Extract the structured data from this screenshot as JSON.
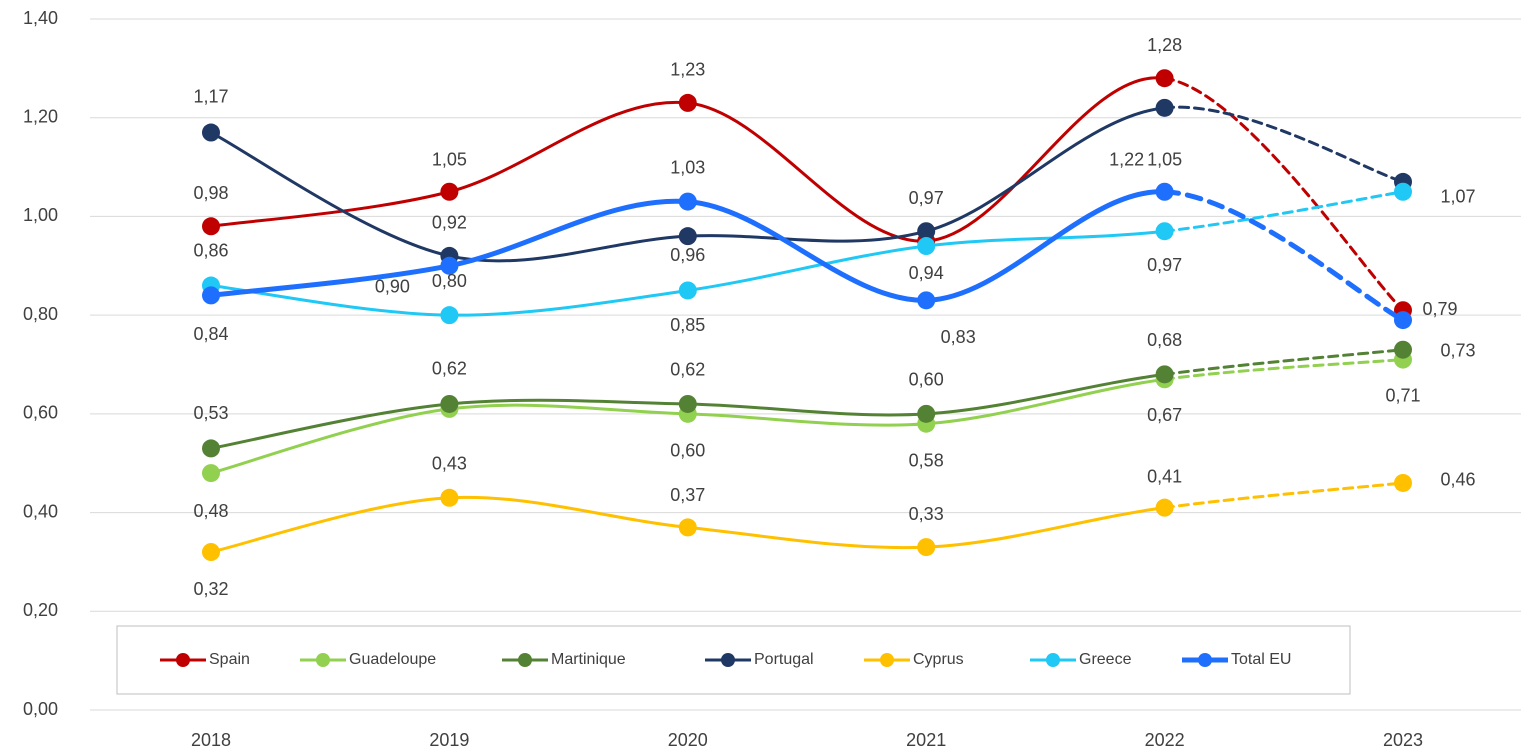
{
  "chart_data": {
    "type": "line",
    "smooth": true,
    "dashed_last_segment": true,
    "categories": [
      "2018",
      "2019",
      "2020",
      "2021",
      "2022",
      "2023"
    ],
    "ylim": [
      0,
      1.4
    ],
    "yticks": [
      {
        "value": 0,
        "label": "0,00"
      },
      {
        "value": 0.2,
        "label": "0,20"
      },
      {
        "value": 0.4,
        "label": "0,40"
      },
      {
        "value": 0.6,
        "label": "0,60"
      },
      {
        "value": 0.8,
        "label": "0,80"
      },
      {
        "value": 1.0,
        "label": "1,00"
      },
      {
        "value": 1.2,
        "label": "1,20"
      },
      {
        "value": 1.4,
        "label": "1,40"
      }
    ],
    "grid": true,
    "legend": "bottom",
    "series": [
      {
        "name": "Spain",
        "color": "#c00000",
        "values": [
          0.98,
          1.05,
          1.23,
          0.95,
          1.28,
          0.81
        ],
        "value_labels": [
          "0,98",
          "1,05",
          "1,23",
          null,
          "1,28",
          null
        ]
      },
      {
        "name": "Guadeloupe",
        "color": "#92d050",
        "values": [
          0.48,
          0.61,
          0.6,
          0.58,
          0.67,
          0.71
        ],
        "value_labels": [
          "0,48",
          null,
          "0,60",
          "0,58",
          "0,67",
          "0,71"
        ]
      },
      {
        "name": "Martinique",
        "color": "#548235",
        "values": [
          0.53,
          0.62,
          0.62,
          0.6,
          0.68,
          0.73
        ],
        "value_labels": [
          "0,53",
          "0,62",
          "0,62",
          "0,60",
          "0,68",
          "0,73"
        ]
      },
      {
        "name": "Portugal",
        "color": "#203864",
        "values": [
          1.17,
          0.92,
          0.96,
          0.97,
          1.22,
          1.07
        ],
        "value_labels": [
          "1,17",
          "0,92",
          "0,96",
          "0,97",
          "1,22",
          "1,07"
        ]
      },
      {
        "name": "Cyprus",
        "color": "#ffc000",
        "values": [
          0.32,
          0.43,
          0.37,
          0.33,
          0.41,
          0.46
        ],
        "value_labels": [
          "0,32",
          "0,43",
          "0,37",
          "0,33",
          "0,41",
          "0,46"
        ]
      },
      {
        "name": "Greece",
        "color": "#1fc8f5",
        "values": [
          0.86,
          0.8,
          0.85,
          0.94,
          0.97,
          1.05
        ],
        "value_labels": [
          "0,86",
          "0,80",
          "0,85",
          "0,94",
          "0,97",
          null
        ]
      },
      {
        "name": "Total EU",
        "color": "#1f6fff",
        "bold": true,
        "values": [
          0.84,
          0.9,
          1.03,
          0.83,
          1.05,
          0.79
        ],
        "value_labels": [
          "0,84",
          "0,90",
          "1,03",
          "0,83",
          "1,05",
          "0,79"
        ]
      }
    ]
  }
}
